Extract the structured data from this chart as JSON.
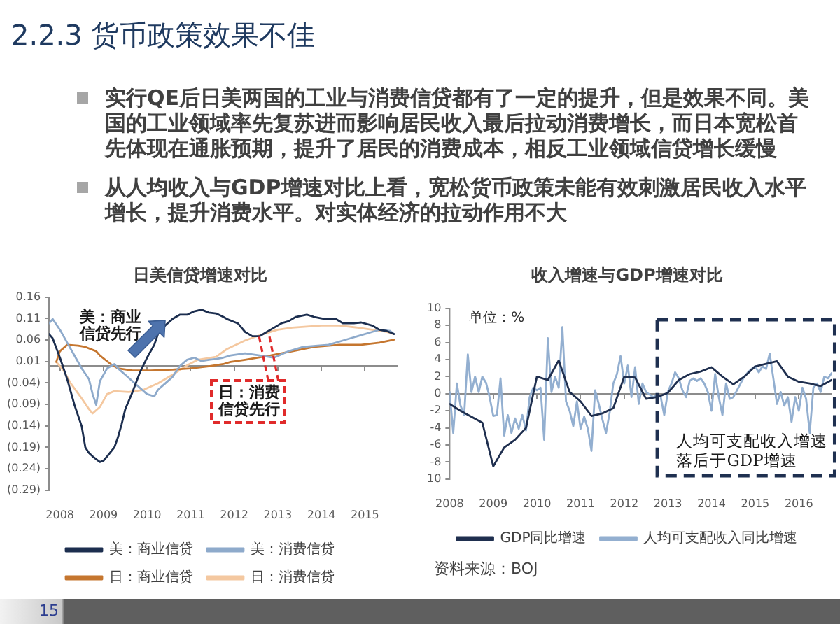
{
  "chart_data": [
    {
      "type": "other",
      "title": "2.2.3 货币政策效果不佳",
      "annotations": [
        "实行QE后日美两国的工业与消费信贷都有了一定的提升，但是效果不同。美国的工业领域率先复苏进而影响居民收入最后拉动消费增长，而日本宽松首先体现在通胀预期，提升了居民的消费成本，相反工业领域信贷增长缓慢",
        "从人均收入与GDP增速对比上看，宽松货币政策未能有效刺激居民收入水平增长，提升消费水平。对实体经济的拉动作用不大",
        "15"
      ]
    },
    {
      "type": "line",
      "title": "日美信贷增速对比",
      "xlim": [
        "2007-10",
        "2015-10"
      ],
      "xticks": [
        "2008",
        "2009",
        "2010",
        "2011",
        "2012",
        "2013",
        "2014",
        "2015"
      ],
      "ylim": [
        -0.29,
        0.16
      ],
      "yticks": [
        {
          "value": -0.29,
          "label": "(0.29)"
        },
        {
          "value": -0.24,
          "label": "(0.24)"
        },
        {
          "value": -0.19,
          "label": "(0.19)"
        },
        {
          "value": -0.14,
          "label": "(0.14)"
        },
        {
          "value": -0.09,
          "label": "(0.09)"
        },
        {
          "value": -0.04,
          "label": "(0.04)"
        },
        0.01,
        0.06,
        0.11,
        0.16
      ],
      "legend": "bottom",
      "annotations": [
        "美：商业信贷先行",
        {
          "text": "日：消费信贷先行",
          "x": "2012-09",
          "y": 0.074
        }
      ],
      "series": [
        {
          "name": "美：商业信贷",
          "color": "#1c2e4f",
          "x": [
            "2007-10",
            "2007-11",
            "2008-01",
            "2008-03",
            "2008-05",
            "2008-07",
            "2008-08",
            "2008-09",
            "2008-10",
            "2008-12",
            "2009-01",
            "2009-02",
            "2009-04",
            "2009-05",
            "2009-06",
            "2009-07",
            "2009-09",
            "2009-11",
            "2010-01",
            "2010-03",
            "2010-04",
            "2010-06",
            "2010-08",
            "2010-10",
            "2010-12",
            "2011-02",
            "2011-04",
            "2011-06",
            "2011-08",
            "2011-10",
            "2011-11",
            "2012-02",
            "2012-04",
            "2012-06",
            "2012-08",
            "2012-10",
            "2012-12",
            "2013-02",
            "2013-04",
            "2013-06",
            "2013-09",
            "2013-11",
            "2014-02",
            "2014-05",
            "2014-07",
            "2014-10",
            "2014-12",
            "2015-03",
            "2015-05",
            "2015-07",
            "2015-09"
          ],
          "values": [
            0.074,
            0.064,
            0.019,
            -0.031,
            -0.091,
            -0.141,
            -0.19,
            -0.203,
            -0.211,
            -0.224,
            -0.221,
            -0.211,
            -0.19,
            -0.166,
            -0.136,
            -0.101,
            -0.061,
            -0.016,
            0.019,
            0.049,
            0.074,
            0.094,
            0.109,
            0.119,
            0.119,
            0.127,
            0.131,
            0.124,
            0.122,
            0.114,
            0.109,
            0.099,
            0.079,
            0.069,
            0.069,
            0.079,
            0.089,
            0.099,
            0.104,
            0.114,
            0.119,
            0.114,
            0.109,
            0.109,
            0.099,
            0.099,
            0.101,
            0.094,
            0.084,
            0.081,
            0.074
          ]
        },
        {
          "name": "美：消费信贷",
          "color": "#8eaacb",
          "x": [
            "2007-10",
            "2007-11",
            "2008-01",
            "2008-03",
            "2008-05",
            "2008-07",
            "2008-09",
            "2008-10",
            "2008-11",
            "2008-12",
            "2009-02",
            "2009-04",
            "2009-05",
            "2009-07",
            "2009-09",
            "2009-11",
            "2010-01",
            "2010-03",
            "2010-04",
            "2010-06",
            "2010-08",
            "2010-10",
            "2010-12",
            "2011-02",
            "2011-04",
            "2011-06",
            "2011-08",
            "2011-10",
            "2011-12",
            "2012-04",
            "2012-08",
            "2012-12",
            "2013-04",
            "2013-08",
            "2013-12",
            "2014-03",
            "2014-07",
            "2014-11",
            "2015-03",
            "2015-05",
            "2015-08",
            "2015-09"
          ],
          "values": [
            0.099,
            0.109,
            0.084,
            0.054,
            0.024,
            -0.006,
            -0.031,
            -0.066,
            -0.091,
            -0.036,
            -0.006,
            0.004,
            -0.006,
            -0.021,
            -0.036,
            -0.051,
            -0.066,
            -0.071,
            -0.056,
            -0.041,
            -0.026,
            -0.001,
            0.014,
            0.019,
            0.011,
            0.014,
            0.016,
            0.019,
            0.024,
            0.029,
            0.024,
            0.019,
            0.034,
            0.044,
            0.047,
            0.049,
            0.059,
            0.069,
            0.079,
            0.084,
            0.081,
            0.074
          ]
        },
        {
          "name": "日：商业信贷",
          "color": "#c5762f",
          "x": [
            "2007-12",
            "2008-01",
            "2008-03",
            "2008-06",
            "2008-08",
            "2008-11",
            "2008-12",
            "2009-03",
            "2009-05",
            "2009-09",
            "2010-02",
            "2010-08",
            "2011-01",
            "2011-06",
            "2011-10",
            "2011-12",
            "2012-04",
            "2012-11",
            "2013-05",
            "2013-11",
            "2014-06",
            "2014-12",
            "2015-05",
            "2015-09"
          ],
          "values": [
            0.009,
            0.034,
            0.049,
            0.047,
            0.044,
            0.034,
            0.024,
            0.004,
            -0.006,
            -0.011,
            -0.011,
            -0.009,
            -0.006,
            -0.001,
            0.004,
            0.009,
            0.014,
            0.024,
            0.034,
            0.044,
            0.049,
            0.049,
            0.054,
            0.061
          ]
        },
        {
          "name": "日：消费信贷",
          "color": "#f4c8a0",
          "x": [
            "2007-12",
            "2008-02",
            "2008-04",
            "2008-07",
            "2008-09",
            "2008-10",
            "2008-12",
            "2009-02",
            "2009-04",
            "2009-08",
            "2009-12",
            "2010-04",
            "2010-08",
            "2010-12",
            "2011-03",
            "2011-08",
            "2011-11",
            "2012-04",
            "2012-09",
            "2013-01",
            "2013-05",
            "2014-01",
            "2014-06",
            "2014-11",
            "2015-03",
            "2015-07",
            "2015-09"
          ],
          "values": [
            0.009,
            -0.011,
            -0.041,
            -0.076,
            -0.101,
            -0.111,
            -0.096,
            -0.066,
            -0.059,
            -0.061,
            -0.056,
            -0.041,
            -0.021,
            0.001,
            0.014,
            0.021,
            0.039,
            0.059,
            0.074,
            0.084,
            0.089,
            0.094,
            0.094,
            0.089,
            0.084,
            0.079,
            0.074
          ]
        }
      ]
    },
    {
      "type": "line",
      "title": "收入增速与GDP增速对比",
      "ylabel": "单位：%",
      "xlim": [
        "2008-01",
        "2016-10"
      ],
      "xticks": [
        "2008",
        "2009",
        "2010",
        "2011",
        "2012",
        "2013",
        "2014",
        "2015",
        "2016"
      ],
      "ylim": [
        -10,
        10
      ],
      "yticks": [
        {
          "value": -10,
          "label": "10"
        },
        -8,
        -6,
        -4,
        -2,
        0,
        2,
        4,
        6,
        8,
        10
      ],
      "legend": "bottom",
      "annotations": [
        "人均可支配收入增速落后于GDP增速",
        "资料来源：BOJ"
      ],
      "x": [
        "2008-01",
        "2008-02",
        "2008-03",
        "2008-04",
        "2008-05",
        "2008-06",
        "2008-07",
        "2008-08",
        "2008-09",
        "2008-10",
        "2008-11",
        "2008-12",
        "2009-01",
        "2009-02",
        "2009-03",
        "2009-04",
        "2009-05",
        "2009-06",
        "2009-07",
        "2009-08",
        "2009-09",
        "2009-10",
        "2009-11",
        "2009-12",
        "2010-01",
        "2010-02",
        "2010-03",
        "2010-04",
        "2010-05",
        "2010-06",
        "2010-07",
        "2010-08",
        "2010-09",
        "2010-10",
        "2010-11",
        "2010-12",
        "2011-01",
        "2011-02",
        "2011-03",
        "2011-04",
        "2011-05",
        "2011-06",
        "2011-07",
        "2011-08",
        "2011-09",
        "2011-10",
        "2011-11",
        "2011-12",
        "2012-01",
        "2012-02",
        "2012-03",
        "2012-04",
        "2012-05",
        "2012-06",
        "2012-07",
        "2012-08",
        "2012-09",
        "2012-10",
        "2012-11",
        "2012-12",
        "2013-01",
        "2013-02",
        "2013-03",
        "2013-04",
        "2013-05",
        "2013-06",
        "2013-07",
        "2013-08",
        "2013-09",
        "2013-10",
        "2013-11",
        "2013-12",
        "2014-01",
        "2014-02",
        "2014-03",
        "2014-04",
        "2014-05",
        "2014-06",
        "2014-07",
        "2014-08",
        "2014-09",
        "2014-10",
        "2014-11",
        "2014-12",
        "2015-01",
        "2015-02",
        "2015-03",
        "2015-04",
        "2015-05",
        "2015-06",
        "2015-07",
        "2015-08",
        "2015-09",
        "2015-10",
        "2015-11",
        "2015-12",
        "2016-01",
        "2016-02",
        "2016-03",
        "2016-04",
        "2016-05",
        "2016-06",
        "2016-07",
        "2016-08",
        "2016-09",
        "2016-10"
      ],
      "series": [
        {
          "name": "GDP同比增速",
          "color": "#1f2f4f",
          "x": [
            "2008-01",
            "2008-04",
            "2008-07",
            "2008-10",
            "2009-01",
            "2009-04",
            "2009-07",
            "2009-10",
            "2010-01",
            "2010-04",
            "2010-07",
            "2010-10",
            "2011-01",
            "2011-04",
            "2011-07",
            "2011-10",
            "2012-01",
            "2012-04",
            "2012-07",
            "2012-10",
            "2013-01",
            "2013-04",
            "2013-07",
            "2013-10",
            "2014-01",
            "2014-04",
            "2014-07",
            "2014-10",
            "2015-01",
            "2015-04",
            "2015-07",
            "2015-10",
            "2016-01",
            "2016-04",
            "2016-07",
            "2016-10"
          ],
          "values": [
            -1.2,
            -2.0,
            -2.7,
            -3.4,
            -8.5,
            -6.3,
            -5.4,
            -4.0,
            2.0,
            1.6,
            3.9,
            0.2,
            -0.9,
            -2.6,
            -2.3,
            -1.7,
            2.0,
            1.9,
            -0.6,
            -0.4,
            0.1,
            1.6,
            2.3,
            2.6,
            3.1,
            2.0,
            1.1,
            2.0,
            3.2,
            3.5,
            3.8,
            2.0,
            1.4,
            1.2,
            0.9,
            1.6
          ]
        },
        {
          "name": "人均可支配收入同比增速",
          "color": "#93afd0",
          "values": [
            0.2,
            -4.6,
            1.2,
            -1.4,
            -2.5,
            4.6,
            0.2,
            2.0,
            0.2,
            2.0,
            1.3,
            -0.4,
            -2.6,
            -2.5,
            1.8,
            -4.9,
            -2.5,
            -4.6,
            -2.9,
            -4.1,
            -2.5,
            -4.3,
            -0.4,
            0.7,
            0.4,
            0.7,
            -5.4,
            6.5,
            0.2,
            2.0,
            0.7,
            7.8,
            -0.9,
            -2.0,
            -3.8,
            -0.9,
            -4.1,
            -2.7,
            -4.1,
            -6.7,
            0.4,
            -1.2,
            -3.0,
            -4.6,
            -2.2,
            1.2,
            2.3,
            4.4,
            1.2,
            3.3,
            -0.4,
            3.1,
            -1.2,
            1.2,
            0.2,
            -0.1,
            -0.4,
            -0.1,
            -0.3,
            -2.5,
            0.2,
            1.2,
            2.5,
            1.8,
            0.4,
            -0.4,
            1.5,
            1.8,
            1.5,
            1.8,
            1.2,
            0.2,
            -2.0,
            2.3,
            -0.4,
            -2.5,
            1.2,
            -0.6,
            -0.4,
            0.4,
            1.2,
            2.0,
            2.5,
            2.9,
            3.2,
            2.5,
            3.2,
            2.9,
            4.7,
            1.8,
            -1.2,
            0.2,
            -1.4,
            -0.4,
            -3.3,
            -0.4,
            -2.0,
            0.7,
            -0.6,
            -4.6,
            0.7,
            1.2,
            0.2,
            2.0,
            1.8,
            2.4
          ]
        }
      ]
    }
  ]
}
